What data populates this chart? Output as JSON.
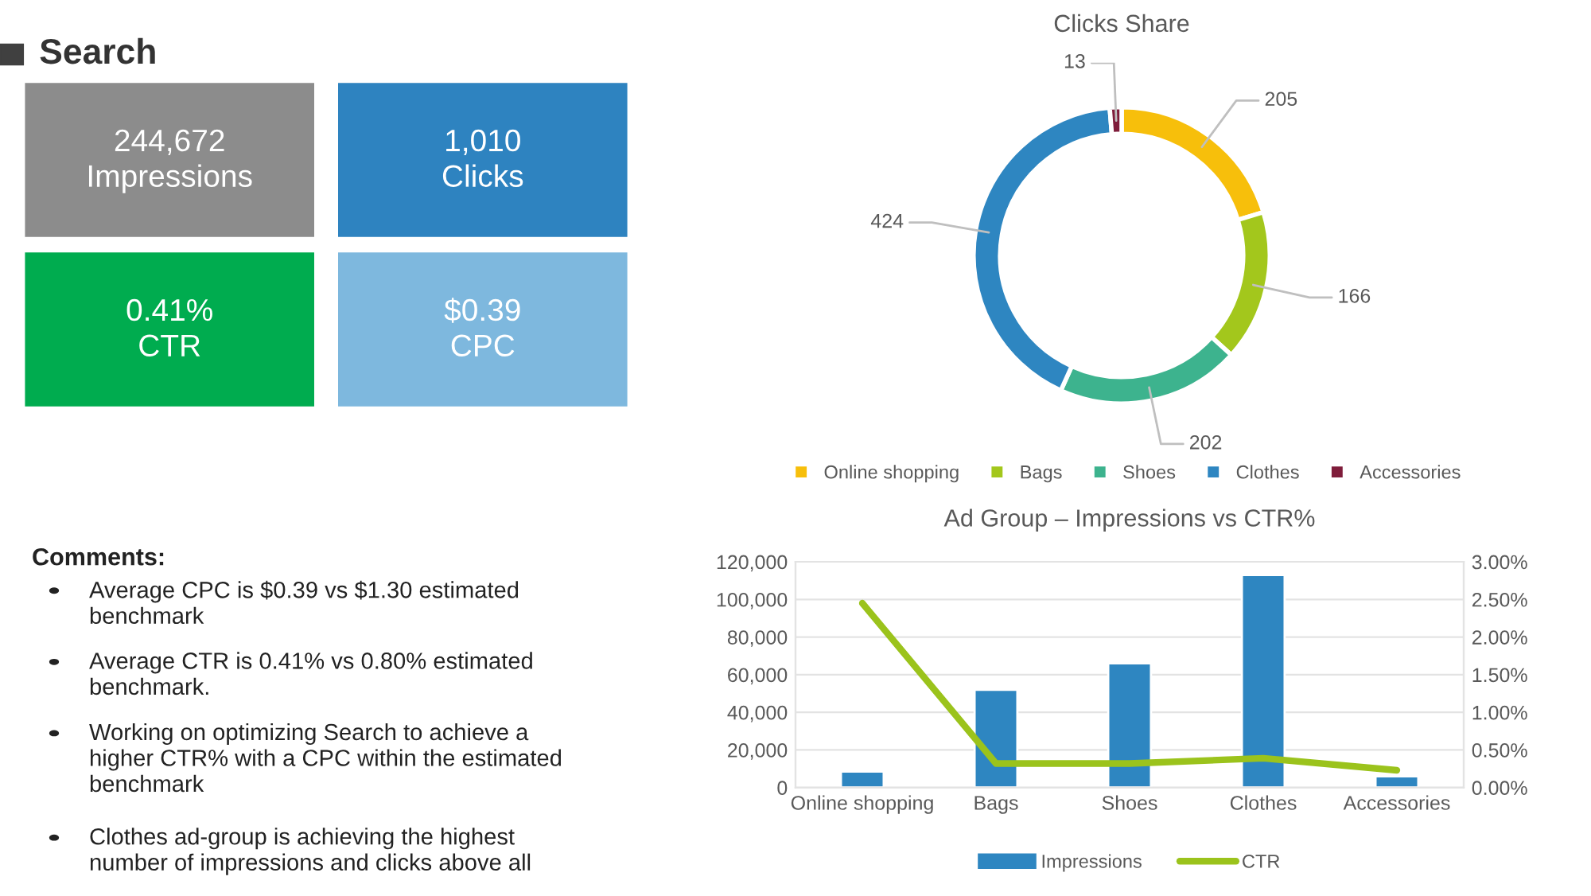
{
  "chart_data": [
    {
      "type": "other",
      "title": "Search",
      "annotations": [
        "244,672\nImpressions",
        "1,010\nClicks",
        "0.41%\nCTR",
        "$0.39\nCPC"
      ],
      "colors": [
        "#8c8c8c",
        "#2e83c0",
        "#00ac4f",
        "#7eb8de"
      ]
    },
    {
      "type": "donut",
      "title": "Clicks Share",
      "categories": [
        "Online shopping",
        "Bags",
        "Shoes",
        "Clothes",
        "Accessories"
      ],
      "values": [
        205,
        166,
        202,
        424,
        13
      ],
      "colors": [
        "#f7bf0b",
        "#a3c71c",
        "#3db38e",
        "#2e86c1",
        "#7f1d3b"
      ],
      "data_labels": true,
      "legend": "bottom"
    },
    {
      "type": "bar",
      "title": "Ad Group – Impressions vs CTR%",
      "categories": [
        "Online shopping",
        "Bags",
        "Shoes",
        "Clothes",
        "Accessories"
      ],
      "series": [
        {
          "name": "Impressions",
          "type": "bar",
          "color": "#2e86c1",
          "values": [
            8500,
            52000,
            66000,
            113000,
            6000
          ]
        },
        {
          "name": "CTR",
          "type": "line",
          "axis": "y2",
          "color": "#9bc31c",
          "values": [
            2.45,
            0.32,
            0.32,
            0.39,
            0.23
          ]
        }
      ],
      "ylim": [
        0,
        120000
      ],
      "yticks": [
        0,
        {
          "value": 20000,
          "label": "20,000"
        },
        {
          "value": 40000,
          "label": "40,000"
        },
        {
          "value": 60000,
          "label": "60,000"
        },
        {
          "value": 80000,
          "label": "80,000"
        },
        {
          "value": 100000,
          "label": "100,000"
        },
        {
          "value": 120000,
          "label": "120,000"
        }
      ],
      "y2lim": [
        0,
        3
      ],
      "y2ticks": [
        {
          "value": 0,
          "label": "0.00%"
        },
        {
          "value": 0.5,
          "label": "0.50%"
        },
        {
          "value": 1,
          "label": "1.00%"
        },
        {
          "value": 1.5,
          "label": "1.50%"
        },
        {
          "value": 2,
          "label": "2.00%"
        },
        {
          "value": 2.5,
          "label": "2.50%"
        },
        {
          "value": 3,
          "label": "3.00%"
        }
      ],
      "grid": "y",
      "legend": "bottom",
      "marker": "none",
      "line_style": "solid"
    },
    {
      "type": "other",
      "title": "Comments:",
      "annotations": [
        "Average CPC is $0.39 vs $1.30 estimated benchmark",
        "Average CTR is 0.41% vs 0.80% estimated benchmark.",
        "Working on optimizing Search to achieve a higher CTR% with a CPC within the estimated benchmark",
        "Clothes ad-group is achieving the highest number of impressions and clicks above all"
      ]
    }
  ]
}
